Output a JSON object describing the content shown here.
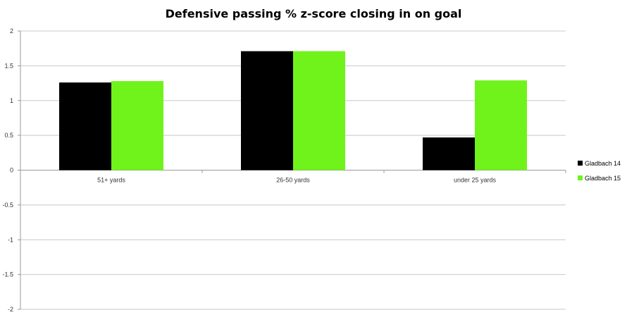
{
  "chart_data": {
    "type": "bar",
    "title": "Defensive passing % z-score closing in on goal",
    "categories": [
      "51+ yards",
      "26-50 yards",
      "under 25 yards"
    ],
    "series": [
      {
        "name": "Gladbach 14",
        "values": [
          1.26,
          1.71,
          0.47
        ]
      },
      {
        "name": "Gladbach 15",
        "values": [
          1.28,
          1.71,
          1.29
        ]
      }
    ],
    "ylim": [
      -2,
      2
    ],
    "yticks": [
      "2",
      "1.5",
      "1",
      "0.5",
      "0",
      "-0.5",
      "-1",
      "-1.5",
      "-2"
    ],
    "grid": true,
    "legend": "right",
    "colors": {
      "Gladbach 14": "#000000",
      "Gladbach 15": "#70f31b"
    }
  }
}
